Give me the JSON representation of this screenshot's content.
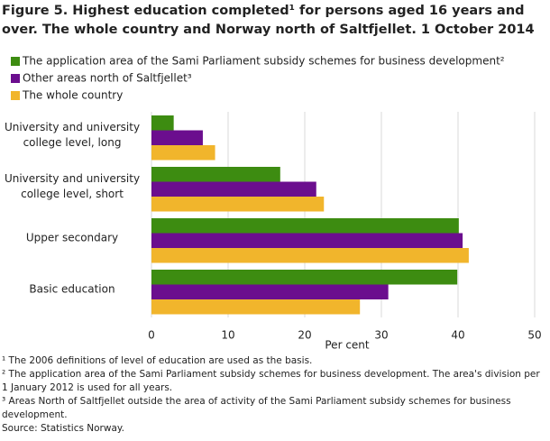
{
  "chart_data": {
    "type": "hbar",
    "title": "Figure 5. Highest education completed¹ for persons aged 16 years and over. The whole country and Norway north of Saltfjellet. 1 October 2014",
    "categories": [
      "University and university college level, long",
      "University and university college level, short",
      "Upper secondary",
      "Basic education"
    ],
    "series": [
      {
        "name": "The application area of the Sami Parliament subsidy schemes for business development²",
        "color": "#3d8c11",
        "values": [
          2.9,
          16.8,
          40.1,
          39.9
        ]
      },
      {
        "name": "Other areas north of Saltfjellet³",
        "color": "#6b0e8e",
        "values": [
          6.7,
          21.5,
          40.6,
          30.9
        ]
      },
      {
        "name": "The whole country",
        "color": "#f1b52c",
        "values": [
          8.3,
          22.5,
          41.4,
          27.2
        ]
      }
    ],
    "xlabel": "Per cent",
    "xlim": [
      0,
      50
    ],
    "xticks": [
      0,
      10,
      20,
      30,
      40,
      50
    ],
    "grid": true,
    "notes": [
      "¹ The 2006 definitions of level of education are used as the basis.",
      "² The application area of the Sami Parliament subsidy schemes for business development. The area's division per 1 January 2012 is used for all years.",
      "³ Areas North of Saltfjellet outside the area of activity of the Sami Parliament subsidy schemes for business development."
    ],
    "source": "Source: Statistics Norway."
  }
}
